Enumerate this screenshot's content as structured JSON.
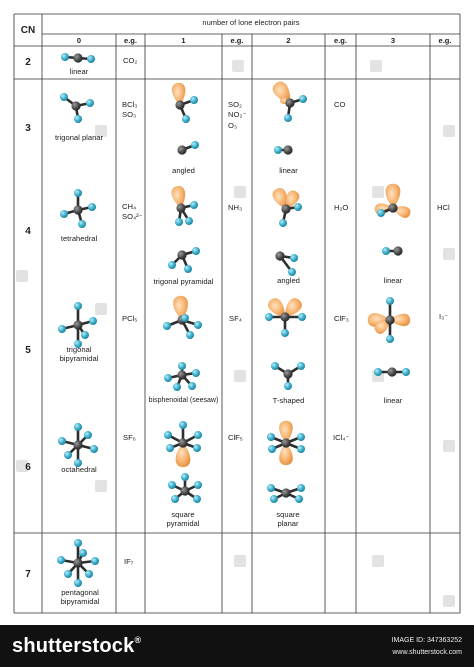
{
  "header": {
    "cn": "CN",
    "group_title": "number of lone electron pairs",
    "cols": [
      "0",
      "e.g.",
      "1",
      "e.g.",
      "2",
      "e.g.",
      "3",
      "e.g."
    ]
  },
  "rows": [
    "2",
    "3",
    "4",
    "5",
    "6",
    "7"
  ],
  "labels": {
    "linear_0": "linear",
    "trigonal_planar": "trigonal planar",
    "tetrahedral": "tetrahedral",
    "trigonal_bipyramidal": "trigonal bipyramidal",
    "octahedral": "octahedral",
    "pentagonal_bipyramidal": "pentagonal bipyramidal",
    "angled_1": "angled",
    "trigonal_pyramidal": "trigonal pyramidal",
    "bisphenoidal": "bisphenoidal (seesaw)",
    "square_pyramidal": "square pyramidal",
    "linear_2": "linear",
    "angled_2": "angled",
    "t_shaped": "T-shaped",
    "square_planar": "square planar",
    "linear_3a": "linear",
    "linear_3b": "linear"
  },
  "examples": {
    "cn2_lp0": "CO₂",
    "cn3_lp0": "BCl₃\nSO₃",
    "cn3_lp1": "SO₂\nNO₂⁻\nO₃",
    "cn3_lp2": "CO",
    "cn4_lp0": "CH₄\nSO₄²⁻",
    "cn4_lp1": "NH₃",
    "cn4_lp2": "H₂O",
    "cn4_lp3": "HCl",
    "cn5_lp0": "PCl₅",
    "cn5_lp1": "SF₄",
    "cn5_lp2": "ClF₃",
    "cn5_lp3": "I₃⁻",
    "cn6_lp0": "SF₆",
    "cn6_lp1": "ClF₅",
    "cn6_lp2": "ICl₄⁻",
    "cn7_lp0": "IF₇"
  },
  "watermark": "shutterstock",
  "footer": {
    "brand": "shutterstock",
    "trademark": "®",
    "image_id": "IMAGE ID: 347363252",
    "site": "www.shutterstock.com"
  },
  "colors": {
    "ligand": "#3fb0cc",
    "central": "#4a4a4a",
    "lone_pair": "#f6b06a",
    "grid": "#333333",
    "footer_bg": "#111111"
  }
}
